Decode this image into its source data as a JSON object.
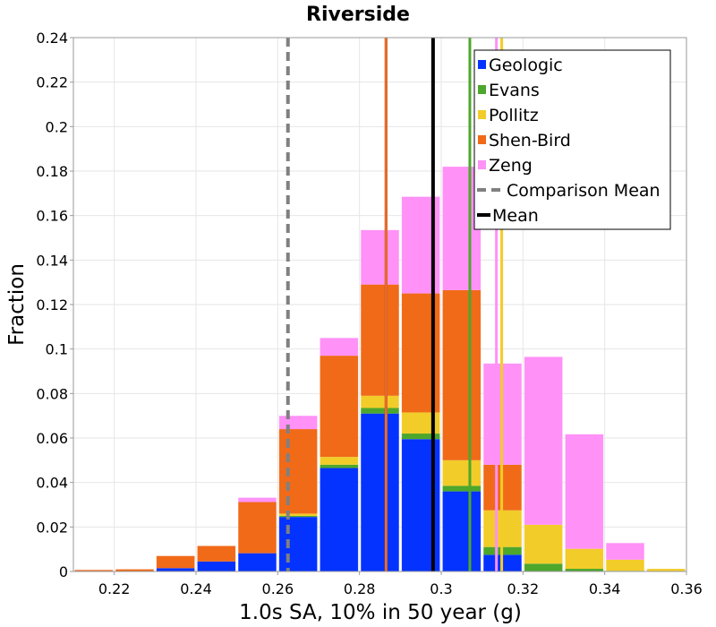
{
  "chart_data": {
    "type": "bar",
    "stacked": true,
    "title": "Riverside",
    "xlabel": "1.0s SA, 10% in 50 year (g)",
    "ylabel": "Fraction",
    "xlim": [
      0.21,
      0.36
    ],
    "ylim": [
      0,
      0.24
    ],
    "bin_width": 0.01,
    "xticks": [
      "0.22",
      "0.24",
      "0.26",
      "0.28",
      "0.3",
      "0.32",
      "0.34",
      "0.36"
    ],
    "xtick_values": [
      0.22,
      0.24,
      0.26,
      0.28,
      0.3,
      0.32,
      0.34,
      0.36
    ],
    "yticks": [
      "0",
      "0.02",
      "0.04",
      "0.06",
      "0.08",
      "0.1",
      "0.12",
      "0.14",
      "0.16",
      "0.18",
      "0.2",
      "0.22",
      "0.24"
    ],
    "ytick_values": [
      0,
      0.02,
      0.04,
      0.06,
      0.08,
      0.1,
      0.12,
      0.14,
      0.16,
      0.18,
      0.2,
      0.22,
      0.24
    ],
    "grid": true,
    "legend_position": "top-right",
    "bin_centers": [
      0.215,
      0.225,
      0.235,
      0.245,
      0.255,
      0.265,
      0.275,
      0.285,
      0.295,
      0.305,
      0.315,
      0.325,
      0.335,
      0.345,
      0.355
    ],
    "series": [
      {
        "name": "Geologic",
        "color": "#0433ff",
        "values": [
          0.0,
          0.0,
          0.0015,
          0.0045,
          0.0082,
          0.0245,
          0.0465,
          0.071,
          0.0595,
          0.036,
          0.0075,
          0.0,
          0.0,
          0.0,
          0.0
        ]
      },
      {
        "name": "Evans",
        "color": "#4da72c",
        "values": [
          0.0,
          0.0,
          0.0,
          0.0,
          0.0,
          0.0005,
          0.0015,
          0.0025,
          0.0025,
          0.0025,
          0.0035,
          0.0035,
          0.0012,
          0.0003,
          0.0
        ]
      },
      {
        "name": "Pollitz",
        "color": "#f2cc29",
        "values": [
          0.0,
          0.0,
          0.0,
          0.0,
          0.0,
          0.001,
          0.0035,
          0.0055,
          0.0095,
          0.0115,
          0.0165,
          0.0175,
          0.009,
          0.005,
          0.0012
        ]
      },
      {
        "name": "Shen-Bird",
        "color": "#f06a18",
        "values": [
          0.0007,
          0.001,
          0.0055,
          0.007,
          0.023,
          0.038,
          0.0455,
          0.05,
          0.0535,
          0.0765,
          0.0205,
          0.0,
          0.0,
          0.0,
          0.0
        ]
      },
      {
        "name": "Zeng",
        "color": "#ff91f7",
        "values": [
          0.0,
          0.0,
          0.0,
          0.0,
          0.002,
          0.006,
          0.008,
          0.0245,
          0.0435,
          0.0555,
          0.0455,
          0.0755,
          0.0515,
          0.0075,
          0.0
        ]
      }
    ],
    "vertical_lines": [
      {
        "name": "Geologic",
        "x": 0.2865,
        "color": "#0433ff",
        "style": "solid",
        "in_legend": false
      },
      {
        "name": "Shen-Bird",
        "x": 0.2865,
        "color": "#f06a18",
        "style": "solid",
        "in_legend": false
      },
      {
        "name": "Evans",
        "x": 0.307,
        "color": "#4da72c",
        "style": "solid",
        "in_legend": false
      },
      {
        "name": "Zeng",
        "x": 0.3135,
        "color": "#ff91f7",
        "style": "solid",
        "in_legend": false
      },
      {
        "name": "Pollitz",
        "x": 0.3148,
        "color": "#f2cc29",
        "style": "solid",
        "in_legend": false
      },
      {
        "name": "Comparison Mean",
        "x": 0.2625,
        "color": "#808080",
        "style": "dashed",
        "in_legend": true
      },
      {
        "name": "Mean",
        "x": 0.298,
        "color": "#000000",
        "style": "solid",
        "in_legend": true
      }
    ],
    "legend": [
      {
        "label": "Geologic",
        "color": "#0433ff",
        "kind": "box"
      },
      {
        "label": "Evans",
        "color": "#4da72c",
        "kind": "box"
      },
      {
        "label": "Pollitz",
        "color": "#f2cc29",
        "kind": "box"
      },
      {
        "label": "Shen-Bird",
        "color": "#f06a18",
        "kind": "box"
      },
      {
        "label": "Zeng",
        "color": "#ff91f7",
        "kind": "box"
      },
      {
        "label": "Comparison Mean",
        "color": "#808080",
        "kind": "dashed-line"
      },
      {
        "label": "Mean",
        "color": "#000000",
        "kind": "line"
      }
    ]
  }
}
